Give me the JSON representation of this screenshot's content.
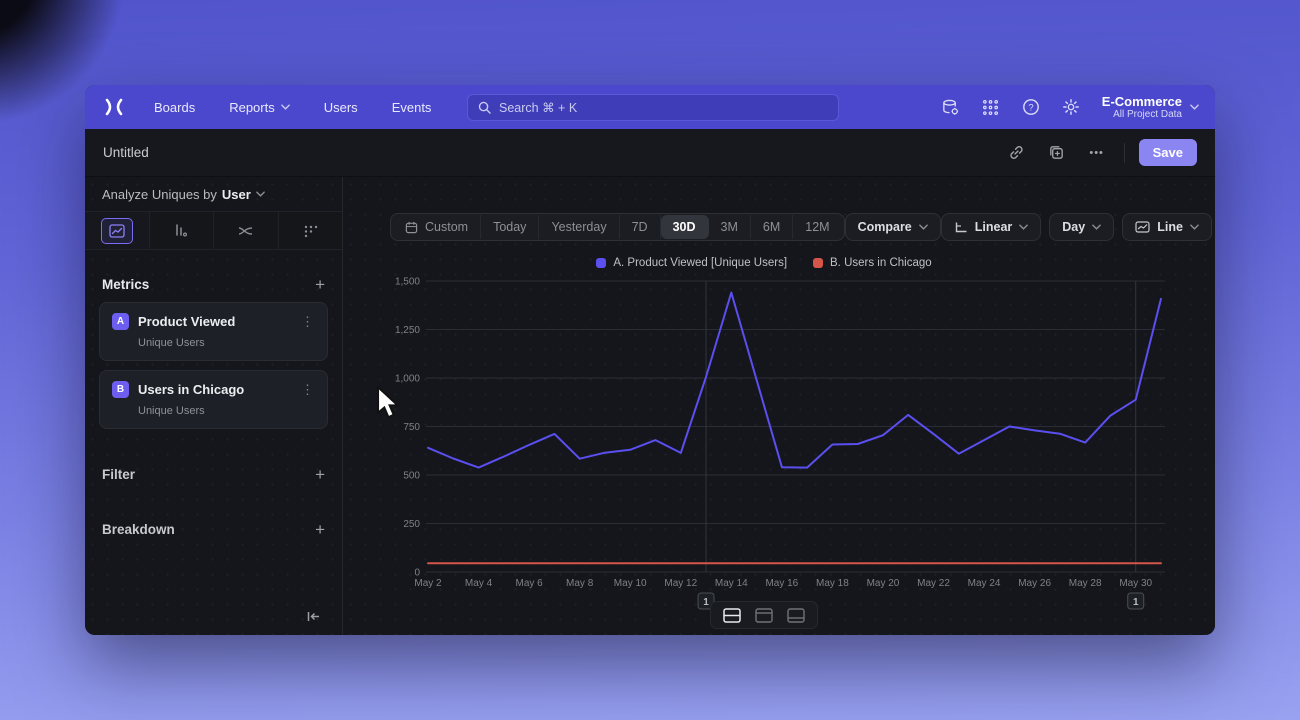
{
  "colors": {
    "nav_bg": "#4b48cd",
    "accent_purple": "#8a85f1",
    "selected_tab_purple": "#7b6cf4",
    "badge_purple": "#6e5ef0"
  },
  "nav": {
    "items": [
      "Boards",
      "Reports",
      "Users",
      "Events"
    ],
    "search_placeholder": "Search  ⌘ + K",
    "project_name": "E-Commerce",
    "project_sub": "All Project Data"
  },
  "title_bar": {
    "title": "Untitled",
    "save_label": "Save",
    "more_label": "•••"
  },
  "sidebar": {
    "analyze_prefix": "Analyze Uniques by",
    "analyze_value": "User",
    "metrics_label": "Metrics",
    "add_label": "+",
    "metrics": [
      {
        "badge": "A",
        "name": "Product Viewed",
        "sub": "Unique Users"
      },
      {
        "badge": "B",
        "name": "Users in Chicago",
        "sub": "Unique Users"
      }
    ],
    "filter_label": "Filter",
    "breakdown_label": "Breakdown"
  },
  "toolbar": {
    "ranges": [
      "Custom",
      "Today",
      "Yesterday",
      "7D",
      "30D",
      "3M",
      "6M",
      "12M"
    ],
    "selected_range": "30D",
    "compare_label": "Compare",
    "scale_label": "Linear",
    "interval_label": "Day",
    "chart_type_label": "Line"
  },
  "chart_data": {
    "type": "line",
    "x": [
      "May 2",
      "May 3",
      "May 4",
      "May 5",
      "May 6",
      "May 7",
      "May 8",
      "May 9",
      "May 10",
      "May 11",
      "May 12",
      "May 13",
      "May 14",
      "May 15",
      "May 16",
      "May 17",
      "May 18",
      "May 19",
      "May 20",
      "May 21",
      "May 22",
      "May 23",
      "May 24",
      "May 25",
      "May 26",
      "May 27",
      "May 28",
      "May 29",
      "May 30",
      "May 31"
    ],
    "xtick_every": 2,
    "series": [
      {
        "name": "A. Product Viewed [Unique Users]",
        "color": "#5b4ff0",
        "values": [
          640,
          585,
          538,
          595,
          655,
          712,
          584,
          615,
          630,
          680,
          614,
          1005,
          1440,
          990,
          540,
          538,
          657,
          660,
          705,
          810,
          712,
          610,
          680,
          750,
          730,
          713,
          667,
          806,
          888,
          1408
        ]
      },
      {
        "name": "B. Users in Chicago",
        "color": "#d4554a",
        "values": [
          45,
          45,
          45,
          45,
          45,
          45,
          45,
          45,
          45,
          45,
          45,
          45,
          45,
          45,
          45,
          45,
          45,
          45,
          45,
          45,
          45,
          45,
          45,
          45,
          45,
          45,
          45,
          45,
          45,
          45
        ]
      }
    ],
    "ylim": [
      0,
      1500
    ],
    "yticks": [
      0,
      250,
      500,
      750,
      1000,
      1250,
      1500
    ],
    "ytick_labels": [
      "0",
      "250",
      "500",
      "750",
      "1,000",
      "1,250",
      "1,500"
    ],
    "grid": true,
    "legend_position": "top",
    "annotations": [
      {
        "label": "1",
        "index": 11
      },
      {
        "label": "1",
        "index": 28
      }
    ]
  }
}
